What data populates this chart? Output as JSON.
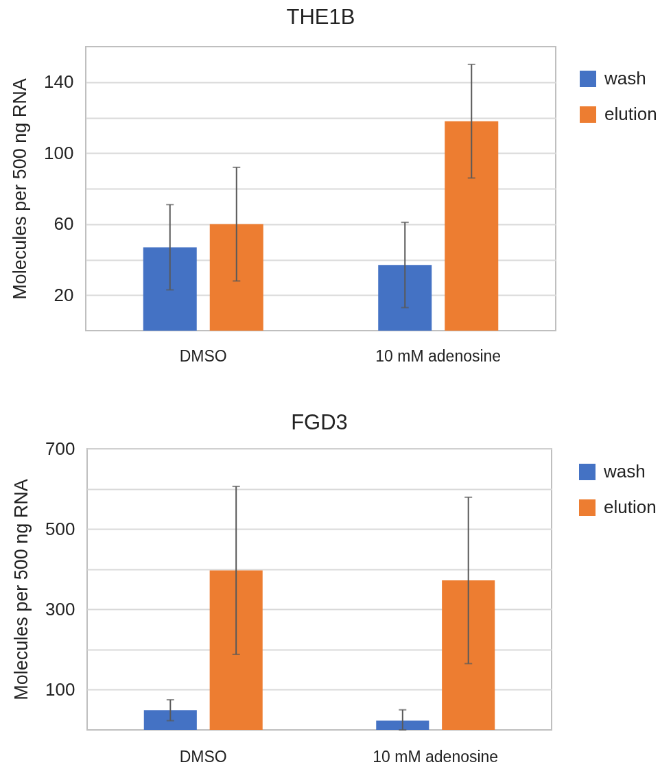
{
  "chart_data": [
    {
      "type": "bar",
      "title": "THE1B",
      "ylabel": "Molecules per 500 ng RNA",
      "categories": [
        "DMSO",
        "10 mM adenosine"
      ],
      "series": [
        {
          "name": "wash",
          "color": "#4472c4",
          "values": [
            47,
            37
          ],
          "errors": [
            24,
            24
          ]
        },
        {
          "name": "elution",
          "color": "#ed7d31",
          "values": [
            60,
            118
          ],
          "errors": [
            32,
            32
          ]
        }
      ],
      "ylim": [
        0,
        160
      ],
      "yticks": [
        20,
        {
          "value": 40,
          "label": null
        },
        60,
        {
          "value": 80,
          "label": null
        },
        100,
        {
          "value": 120,
          "label": null
        },
        140
      ],
      "grid": "y",
      "legend": "right"
    },
    {
      "type": "bar",
      "title": "FGD3",
      "ylabel": "Molecules per 500 ng RNA",
      "categories": [
        "DMSO",
        "10 mM adenosine"
      ],
      "series": [
        {
          "name": "wash",
          "color": "#4472c4",
          "values": [
            49,
            23
          ],
          "errors": [
            26,
            [
              0,
              50
            ]
          ]
        },
        {
          "name": "elution",
          "color": "#ed7d31",
          "values": [
            397,
            372
          ],
          "errors": [
            209,
            207
          ]
        }
      ],
      "ylim": [
        0,
        700
      ],
      "yticks": [
        100,
        {
          "value": 200,
          "label": null
        },
        300,
        {
          "value": 400,
          "label": null
        },
        500,
        {
          "value": 600,
          "label": null
        },
        700
      ],
      "grid": "y",
      "legend": "right"
    }
  ]
}
